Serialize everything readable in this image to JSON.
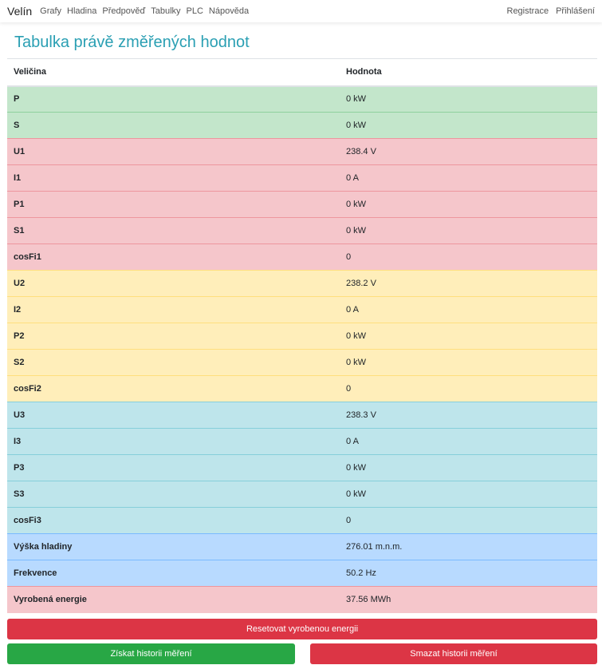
{
  "nav": {
    "brand": "Velín",
    "items": [
      "Grafy",
      "Hladina",
      "Předpověď",
      "Tabulky",
      "PLC",
      "Nápověda"
    ],
    "right": [
      "Registrace",
      "Přihlášení"
    ]
  },
  "title": "Tabulka právě změřených hodnot",
  "table": {
    "headers": [
      "Veličina",
      "Hodnota"
    ],
    "rows": [
      {
        "k": "P",
        "v": "0 kW",
        "variant": "success"
      },
      {
        "k": "S",
        "v": "0 kW",
        "variant": "success"
      },
      {
        "k": "U1",
        "v": "238.4 V",
        "variant": "danger"
      },
      {
        "k": "I1",
        "v": "0 A",
        "variant": "danger"
      },
      {
        "k": "P1",
        "v": "0 kW",
        "variant": "danger"
      },
      {
        "k": "S1",
        "v": "0 kW",
        "variant": "danger"
      },
      {
        "k": "cosFi1",
        "v": "0",
        "variant": "danger"
      },
      {
        "k": "U2",
        "v": "238.2 V",
        "variant": "warning"
      },
      {
        "k": "I2",
        "v": "0 A",
        "variant": "warning"
      },
      {
        "k": "P2",
        "v": "0 kW",
        "variant": "warning"
      },
      {
        "k": "S2",
        "v": "0 kW",
        "variant": "warning"
      },
      {
        "k": "cosFi2",
        "v": "0",
        "variant": "warning"
      },
      {
        "k": "U3",
        "v": "238.3 V",
        "variant": "info"
      },
      {
        "k": "I3",
        "v": "0 A",
        "variant": "info"
      },
      {
        "k": "P3",
        "v": "0 kW",
        "variant": "info"
      },
      {
        "k": "S3",
        "v": "0 kW",
        "variant": "info"
      },
      {
        "k": "cosFi3",
        "v": "0",
        "variant": "info"
      },
      {
        "k": "Výška hladiny",
        "v": "276.01 m.n.m.",
        "variant": "primary"
      },
      {
        "k": "Frekvence",
        "v": "50.2 Hz",
        "variant": "primary"
      },
      {
        "k": "Vyrobená energie",
        "v": "37.56 MWh",
        "variant": "danger"
      }
    ]
  },
  "buttons": {
    "reset": "Resetovat vyrobenou energii",
    "get": "Získat historii měření",
    "delete": "Smazat historii měření"
  }
}
